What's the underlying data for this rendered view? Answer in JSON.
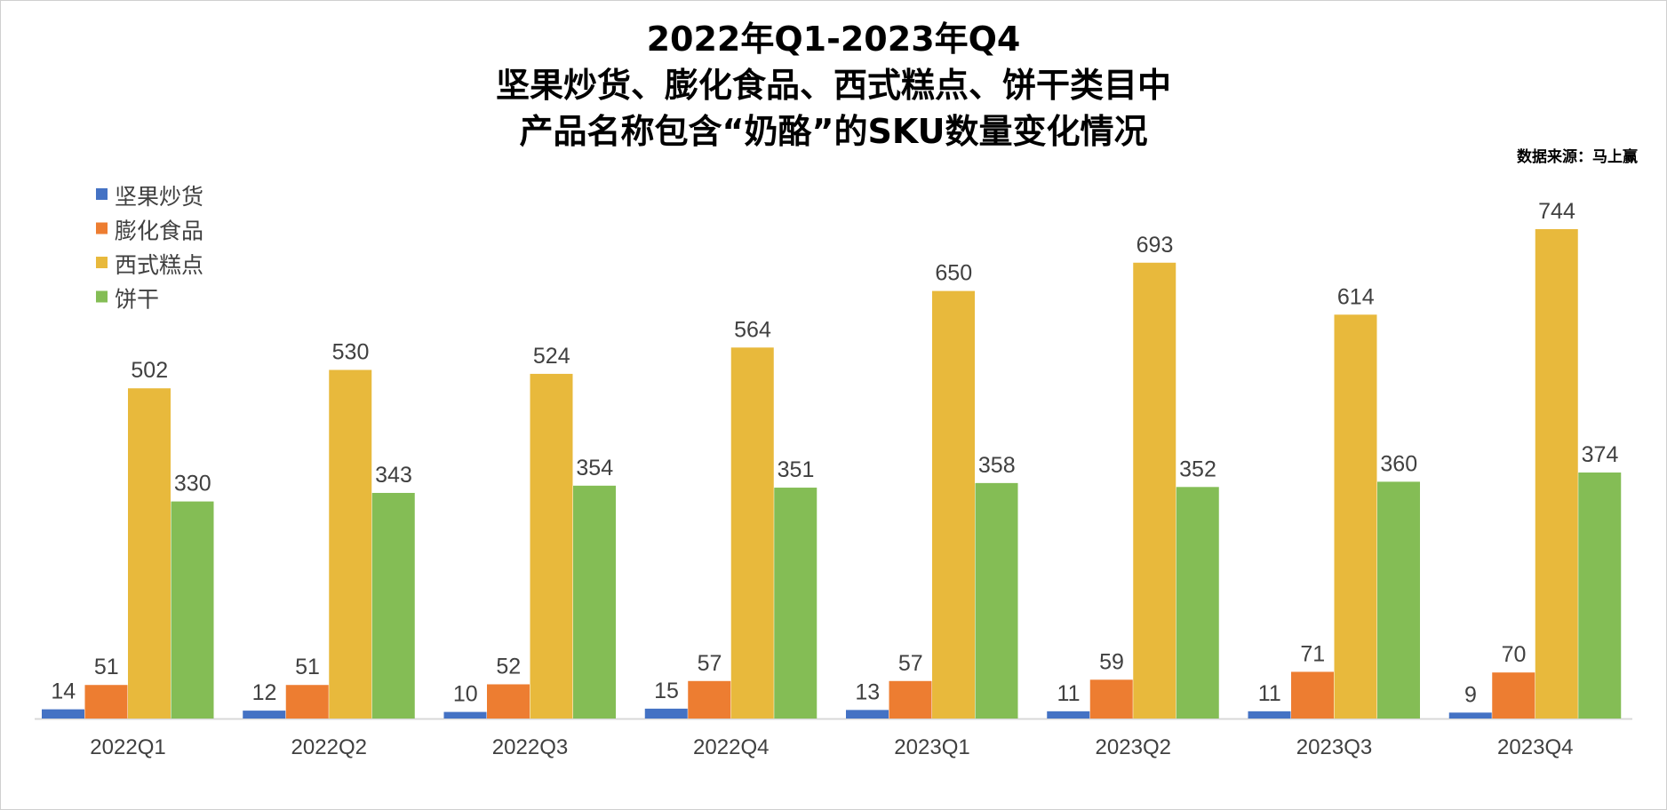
{
  "chart_data": {
    "type": "bar",
    "title_lines": [
      "2022年Q1-2023年Q4",
      "坚果炒货、膨化食品、西式糕点、饼干类目中",
      "产品名称包含“奶酪”的SKU数量变化情况"
    ],
    "source": "数据来源：马上赢",
    "categories": [
      "2022Q1",
      "2022Q2",
      "2022Q3",
      "2022Q4",
      "2023Q1",
      "2023Q2",
      "2023Q3",
      "2023Q4"
    ],
    "series": [
      {
        "name": "坚果炒货",
        "color": "#4472C4",
        "values": [
          14,
          12,
          10,
          15,
          13,
          11,
          11,
          9
        ]
      },
      {
        "name": "膨化食品",
        "color": "#ED7D31",
        "values": [
          51,
          51,
          52,
          57,
          57,
          59,
          71,
          70
        ]
      },
      {
        "name": "西式糕点",
        "color": "#E8B93C",
        "values": [
          502,
          530,
          524,
          564,
          650,
          693,
          614,
          744
        ]
      },
      {
        "name": "饼干",
        "color": "#84BD55",
        "values": [
          330,
          343,
          354,
          351,
          358,
          352,
          360,
          374
        ]
      }
    ],
    "ylim": [
      0,
      744
    ],
    "legend_position": "top-left",
    "grid": false,
    "data_labels": true
  }
}
